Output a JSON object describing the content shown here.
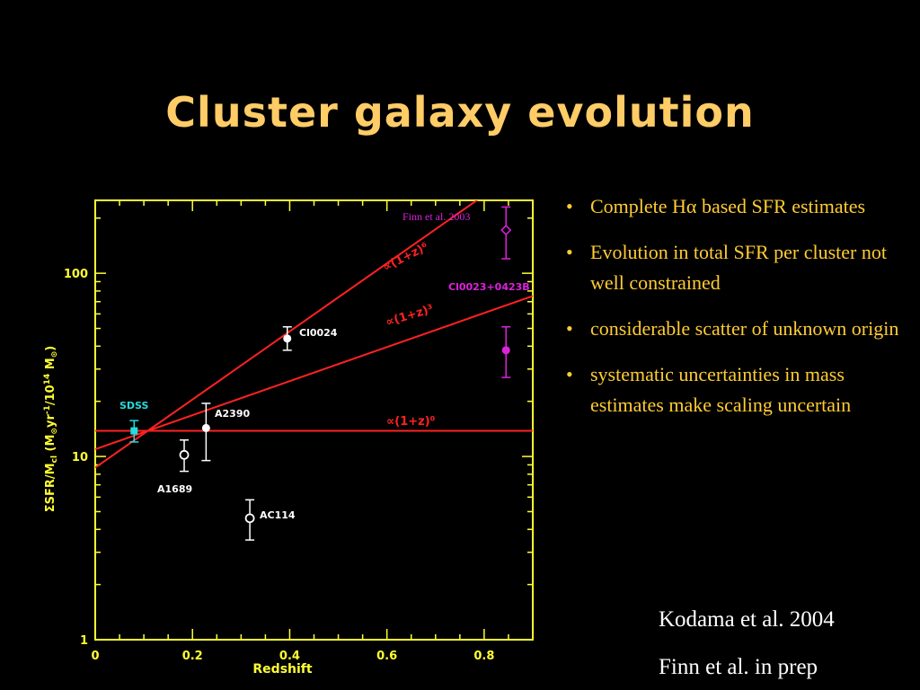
{
  "slide": {
    "title": "Cluster galaxy evolution",
    "bullets": [
      "Complete Hα based SFR estimates",
      "Evolution in total SFR per cluster not well constrained",
      "considerable scatter of unknown origin",
      "systematic uncertainties in mass estimates make scaling uncertain"
    ],
    "bullet_symbol": "•",
    "citations": [
      "Kodama et al. 2004",
      "Finn et al. in prep"
    ]
  },
  "chart_data": {
    "type": "scatter",
    "xlabel": "Redshift",
    "ylabel": "ΣSFR/M_cl (M_⊙yr⁻¹/10¹⁴ M_⊙)",
    "ylabel_parts": [
      "ΣSFR/M",
      "cl",
      " (M",
      "⊙",
      "yr",
      "-1",
      "/10",
      "14",
      " M",
      "⊙",
      ")"
    ],
    "xlim": [
      0,
      0.9
    ],
    "ylim": [
      1,
      250
    ],
    "yscale": "log",
    "x_ticks": [
      0,
      0.2,
      0.4,
      0.6,
      0.8
    ],
    "x_tick_labels": [
      "0",
      "0.2",
      "0.4",
      "0.6",
      "0.8"
    ],
    "y_ticks": [
      1,
      10,
      100
    ],
    "y_tick_labels": [
      "1",
      "10",
      "100"
    ],
    "grid": false,
    "colors": {
      "axes": "#ffff33",
      "lines": "#ff2222",
      "sdss": "#22dddd",
      "finn": "#dd22dd",
      "points": "#ffffff"
    },
    "series": [
      {
        "name": "SDSS",
        "color": "#22dddd",
        "marker": "filled-square",
        "points": [
          {
            "x": 0.08,
            "y": 13.8,
            "ylo": 12.0,
            "yhi": 15.7
          }
        ]
      },
      {
        "name": "A1689",
        "color": "#ffffff",
        "marker": "open-circle",
        "points": [
          {
            "x": 0.183,
            "y": 10.2,
            "ylo": 8.3,
            "yhi": 12.3
          }
        ]
      },
      {
        "name": "A2390",
        "color": "#ffffff",
        "marker": "filled-circle",
        "points": [
          {
            "x": 0.228,
            "y": 14.3,
            "ylo": 9.5,
            "yhi": 19.5
          }
        ]
      },
      {
        "name": "Cl0024",
        "color": "#ffffff",
        "marker": "filled-circle",
        "points": [
          {
            "x": 0.395,
            "y": 44,
            "ylo": 38,
            "yhi": 51
          }
        ]
      },
      {
        "name": "AC114",
        "color": "#ffffff",
        "marker": "open-circle",
        "points": [
          {
            "x": 0.318,
            "y": 4.6,
            "ylo": 3.5,
            "yhi": 5.8
          }
        ]
      },
      {
        "name": "Cl0023+0423B",
        "color": "#dd22dd",
        "marker": "filled-circle",
        "points": [
          {
            "x": 0.845,
            "y": 38,
            "ylo": 27,
            "yhi": 51
          }
        ]
      },
      {
        "name": "Finn et al. 2003",
        "color": "#dd22dd",
        "marker": "open-diamond",
        "points": [
          {
            "x": 0.845,
            "y": 172,
            "ylo": 120,
            "yhi": 230
          }
        ]
      }
    ],
    "lines": [
      {
        "label": "∝(1+z)⁰",
        "exponent": 0,
        "y0": 13.8,
        "x0": 0.08
      },
      {
        "label": "∝(1+z)³",
        "exponent": 3,
        "y0": 13.8,
        "x0": 0.08
      },
      {
        "label": "∝(1+z)⁶",
        "exponent": 6,
        "y0": 13.8,
        "x0": 0.08
      }
    ],
    "labels": {
      "sdss": "SDSS",
      "a1689": "A1689",
      "a2390": "A2390",
      "cl0024": "Cl0024",
      "ac114": "AC114",
      "cl0023": "Cl0023+0423B",
      "finn2003": "Finn et al. 2003",
      "pow0": "∝(1+z)⁰",
      "pow3": "∝(1+z)³",
      "pow6": "∝(1+z)⁶"
    }
  }
}
